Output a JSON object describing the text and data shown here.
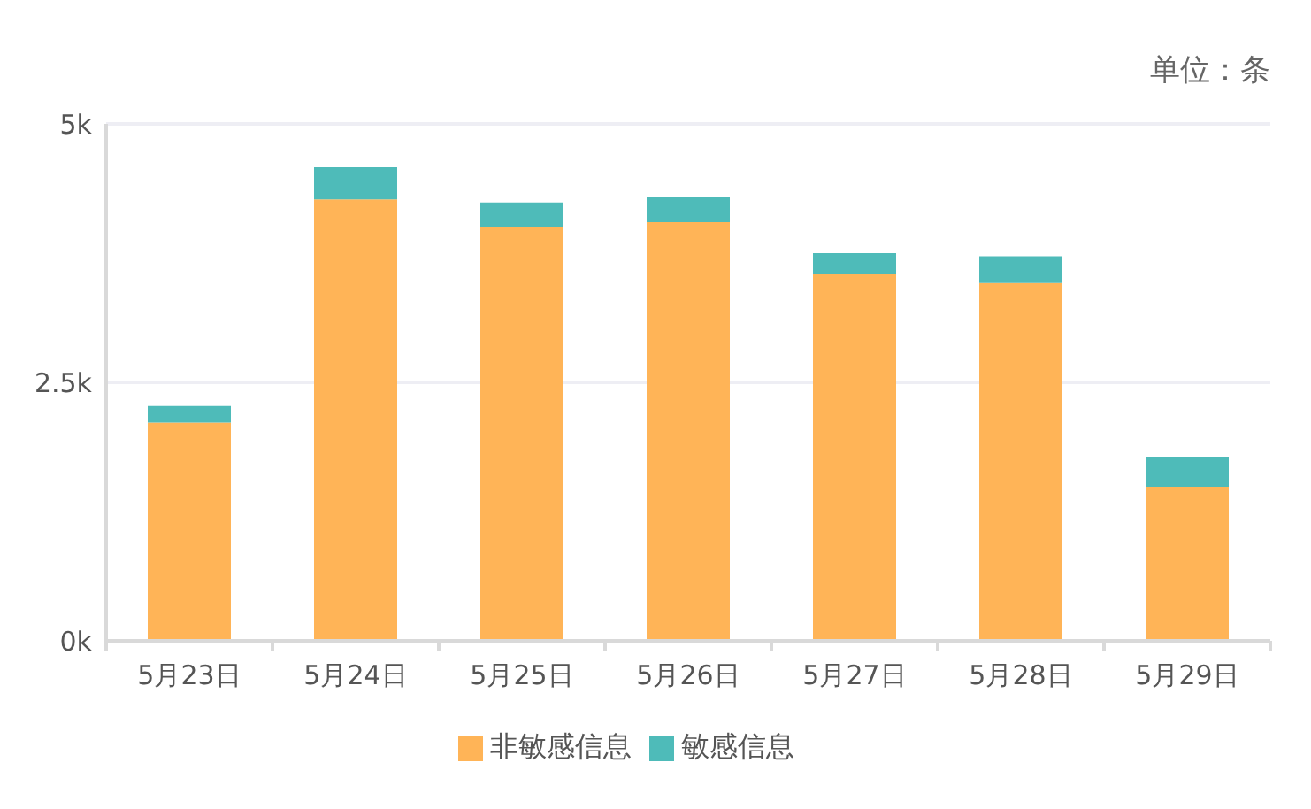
{
  "chart_data": {
    "type": "bar",
    "stacked": true,
    "categories": [
      "5月23日",
      "5月24日",
      "5月25日",
      "5月26日",
      "5月27日",
      "5月28日",
      "5月29日"
    ],
    "series": [
      {
        "name": "非敏感信息",
        "color": "#ffb457",
        "values": [
          2110,
          4270,
          4000,
          4050,
          3550,
          3460,
          1490
        ]
      },
      {
        "name": "敏感信息",
        "color": "#4ebbb9",
        "values": [
          160,
          310,
          240,
          240,
          200,
          260,
          290
        ]
      }
    ],
    "ylim": [
      0,
      5000
    ],
    "yticks": [
      {
        "value": 0,
        "label": "0k"
      },
      {
        "value": 2500,
        "label": "2.5k"
      },
      {
        "value": 5000,
        "label": "5k"
      }
    ],
    "grid": "y",
    "legend": "bottom",
    "annotations": [
      "单位：条"
    ]
  }
}
